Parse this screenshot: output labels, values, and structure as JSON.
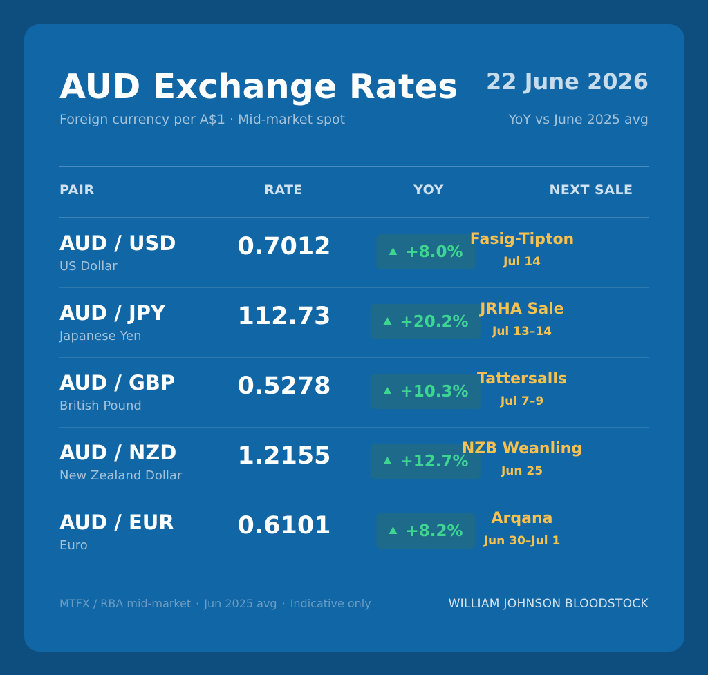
{
  "header": {
    "title": "AUD Exchange Rates",
    "subtitle_left": "Foreign currency per A$1",
    "subtitle_sep": "·",
    "subtitle_right": "Mid-market spot",
    "date": "22 June 2026",
    "yoy_note": "YoY vs June 2025 avg"
  },
  "table": {
    "headers": {
      "pair": "PAIR",
      "rate": "RATE",
      "yoy": "YOY",
      "next_sale": "NEXT SALE"
    },
    "rows": [
      {
        "pair": "AUD / USD",
        "currency": "US Dollar",
        "rate": "0.7012",
        "yoy": "+8.0%",
        "yoy_direction": "up",
        "sale": "Fasig-Tipton",
        "sale_date": "Jul 14"
      },
      {
        "pair": "AUD / JPY",
        "currency": "Japanese Yen",
        "rate": "112.73",
        "yoy": "+20.2%",
        "yoy_direction": "up",
        "sale": "JRHA Sale",
        "sale_date": "Jul 13–14"
      },
      {
        "pair": "AUD / GBP",
        "currency": "British Pound",
        "rate": "0.5278",
        "yoy": "+10.3%",
        "yoy_direction": "up",
        "sale": "Tattersalls",
        "sale_date": "Jul 7–9"
      },
      {
        "pair": "AUD / NZD",
        "currency": "New Zealand Dollar",
        "rate": "1.2155",
        "yoy": "+12.7%",
        "yoy_direction": "up",
        "sale": "NZB Weanling",
        "sale_date": "Jun 25"
      },
      {
        "pair": "AUD / EUR",
        "currency": "Euro",
        "rate": "0.6101",
        "yoy": "+8.2%",
        "yoy_direction": "up",
        "sale": "Arqana",
        "sale_date": "Jun 30–Jul 1"
      }
    ]
  },
  "footer": {
    "source_1": "MTFX / RBA mid-market",
    "source_2": "Jun 2025 avg",
    "source_3": "Indicative only",
    "sep": "·",
    "brand": "WILLIAM JOHNSON BLOODSTOCK"
  },
  "colors": {
    "page_background": "#0e4e7e",
    "card_background": "#1167a6",
    "positive": "#3ed592",
    "sale_accent": "#f7c14f",
    "muted_text": "#a3c1d9"
  },
  "icons": {
    "yoy_up": "triangle-up-icon"
  }
}
